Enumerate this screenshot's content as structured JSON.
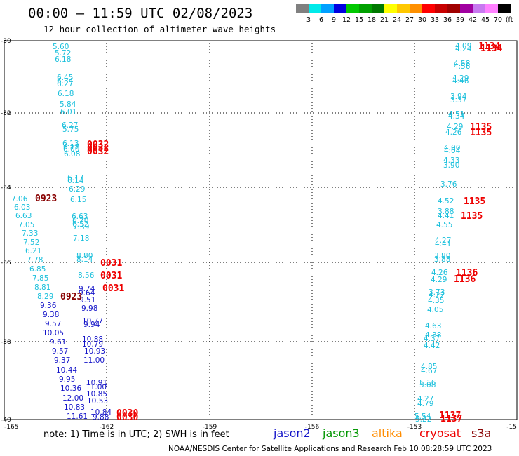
{
  "header": {
    "title": "00:00 – 11:59 UTC 02/08/2023",
    "subtitle": "12 hour collection of altimeter wave heights"
  },
  "colorbar": {
    "colors": [
      "#808080",
      "#00eaea",
      "#00a0ff",
      "#0000e0",
      "#00c800",
      "#00a000",
      "#007800",
      "#ffff00",
      "#ffc800",
      "#ff9000",
      "#ff0000",
      "#c80000",
      "#a00000",
      "#a000a0",
      "#c878f0",
      "#ff80ff",
      "#000000"
    ],
    "labels": [
      "3",
      "6",
      "9",
      "12",
      "15",
      "18",
      "21",
      "24",
      "27",
      "30",
      "33",
      "36",
      "39",
      "42",
      "45",
      "70",
      "(ft)"
    ]
  },
  "axes": {
    "lon_ticks": [
      "-165",
      "-162",
      "-159",
      "-156",
      "-153",
      "-15"
    ],
    "lat_ticks": [
      "-30",
      "-32",
      "-34",
      "-36",
      "-38",
      "-40"
    ]
  },
  "colors": {
    "cyan": "#1cc0dc",
    "blue": "#1414c8",
    "red": "#ee0000",
    "darkred": "#880000"
  },
  "passes": {
    "west_cyan": [
      "5.60",
      "5.72",
      "6.18",
      "6.45",
      "6.34",
      "6.27",
      "6.18",
      "5.84",
      "6.01",
      "6.27",
      "5.75",
      "6.13",
      "6.17",
      "6.00",
      "6.08",
      "6.17",
      "6.14",
      "6.29",
      "6.15",
      "6.63",
      "6.70",
      "6.52",
      "7.39",
      "7.18",
      "8.80",
      "8.14",
      "8.56"
    ],
    "west_blue": [
      "9.74",
      "9.64",
      "9.51",
      "9.98",
      "10.77",
      "9.94",
      "10.88",
      "10.79",
      "10.93",
      "11.00",
      "10.91",
      "11.00",
      "10.85",
      "10.53",
      "10.84",
      "9.88"
    ],
    "far_cyan": [
      "7.06",
      "6.03",
      "6.63",
      "7.05",
      "7.33",
      "7.52",
      "6.21",
      "7.78",
      "6.85",
      "7.85",
      "8.81",
      "8.29"
    ],
    "far_blue": [
      "9.36",
      "9.38",
      "9.57",
      "10.05",
      "9.61",
      "9.57",
      "9.37",
      "10.44",
      "9.95",
      "10.36",
      "12.00",
      "10.83",
      "11.61"
    ],
    "east_cyan": [
      "4.09",
      "4.24",
      "4.58",
      "4.56",
      "4.29",
      "4.46",
      "3.94",
      "3.37",
      "4.51",
      "4.34",
      "4.29",
      "4.26",
      "4.00",
      "4.04",
      "4.33",
      "3.90",
      "3.76",
      "4.52",
      "3.88",
      "4.41",
      "4.55",
      "4.27",
      "4.41",
      "3.80",
      "3.88",
      "4.26",
      "4.29",
      "3.73",
      "4.22",
      "4.35",
      "4.05",
      "4.63",
      "4.38",
      "4.37",
      "4.42",
      "4.85",
      "4.67",
      "5.16",
      "5.08",
      "4.27",
      "4.79",
      "5.54",
      "5.22"
    ],
    "time_labels_red": [
      "0032",
      "0032",
      "0032",
      "0031",
      "0031",
      "0031",
      "0030",
      "0030",
      "1134",
      "1134",
      "1135",
      "1135",
      "1135",
      "1135",
      "1136",
      "1136",
      "1137",
      "1137"
    ],
    "time_labels_darkred": [
      "0923",
      "0923"
    ]
  },
  "note": "note:  1) Time is in UTC;  2) SWH is in feet",
  "satellites": [
    {
      "name": "jason2",
      "color": "#1414c8"
    },
    {
      "name": "jason3",
      "color": "#009600"
    },
    {
      "name": "altika",
      "color": "#ff8c00"
    },
    {
      "name": "cryosat",
      "color": "#ee0000"
    },
    {
      "name": "s3a",
      "color": "#880000"
    }
  ],
  "footer": "NOAA/NESDIS Center for Satellite Applications and Research    Feb 10 08:28:59 UTC 2023"
}
